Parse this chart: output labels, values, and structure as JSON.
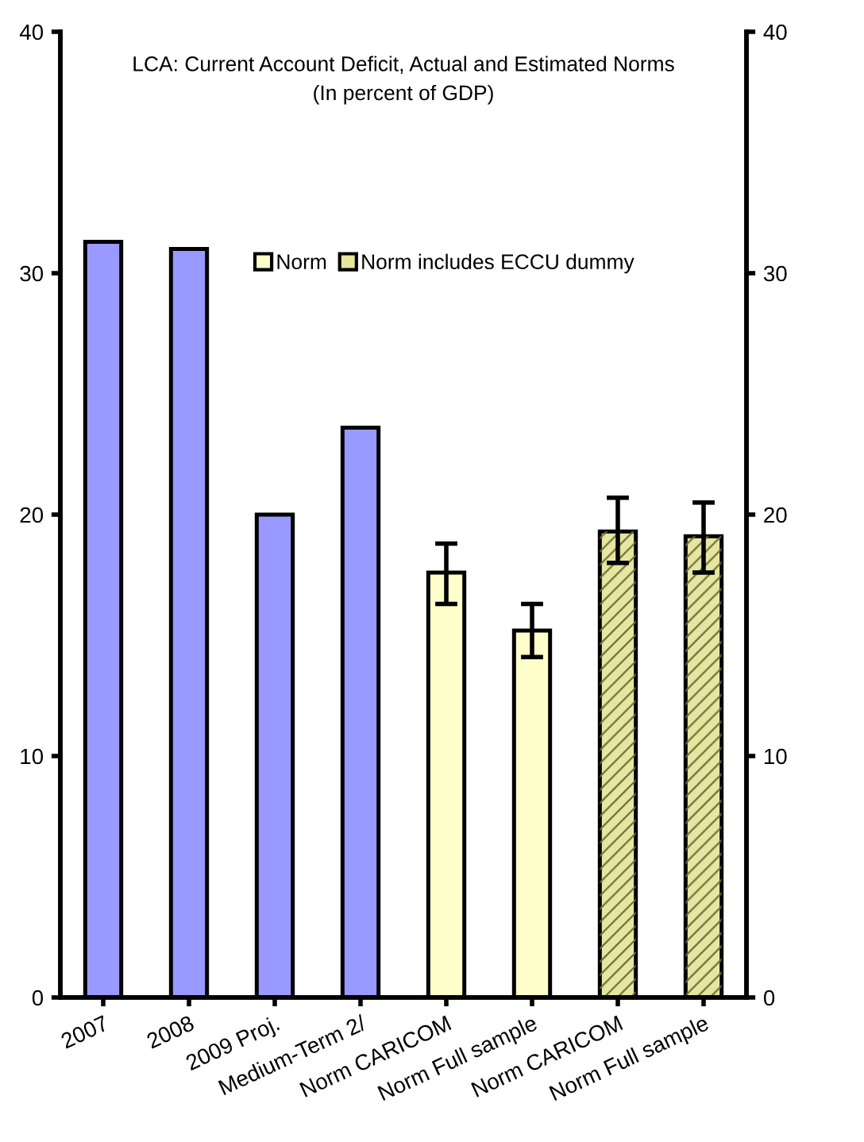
{
  "chart_data": {
    "type": "bar",
    "title": "LCA: Current Account Deficit, Actual and Estimated Norms",
    "subtitle": "(In percent of GDP)",
    "categories": [
      "2007",
      "2008",
      "2009 Proj.",
      "Medium-Term 2/",
      "Norm CARICOM",
      "Norm Full sample",
      "Norm CARICOM",
      "Norm Full sample"
    ],
    "series": [
      {
        "color": "#9999ff",
        "values": [
          31.3,
          31.0,
          20.0,
          23.6,
          null,
          null,
          null,
          null
        ]
      },
      {
        "name": "Norm",
        "color": "#ffffcc",
        "values": [
          null,
          null,
          null,
          null,
          17.6,
          15.2,
          null,
          null
        ],
        "errors": [
          null,
          null,
          null,
          null,
          [
            16.3,
            18.8
          ],
          [
            14.1,
            16.3
          ],
          null,
          null
        ]
      },
      {
        "name": "Norm includes ECCU dummy",
        "color": "#e6e6a0",
        "values": [
          null,
          null,
          null,
          null,
          null,
          null,
          19.3,
          19.1
        ],
        "errors": [
          null,
          null,
          null,
          null,
          null,
          null,
          [
            18.0,
            20.7
          ],
          [
            17.6,
            20.5
          ]
        ]
      }
    ],
    "ylim": [
      0,
      40
    ],
    "yticks": [
      0,
      10,
      20,
      30,
      40
    ],
    "y2lim": [
      0,
      40
    ],
    "y2ticks": [
      0,
      10,
      20,
      30,
      40
    ],
    "grid": false,
    "legend": "top"
  }
}
